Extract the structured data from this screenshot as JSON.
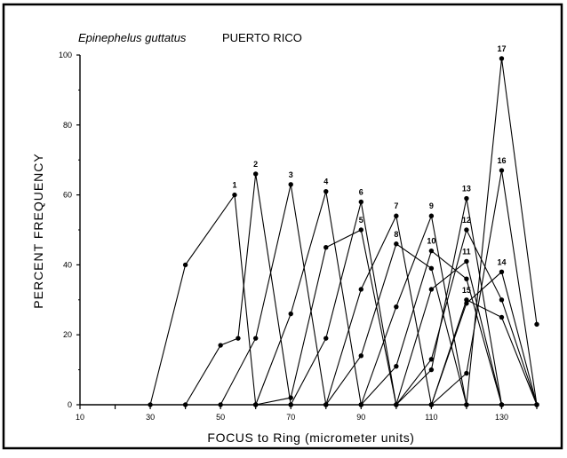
{
  "chart_data": {
    "type": "line",
    "title": "Epinephelus guttatus",
    "subtitle": "PUERTO RICO",
    "xlabel": "FOCUS to Ring (micrometer units)",
    "ylabel": "PERCENT FREQUENCY",
    "xlim": [
      10,
      140
    ],
    "ylim": [
      0,
      100
    ],
    "x_ticks": [
      "10",
      "30",
      "50",
      "70",
      "90",
      "110",
      "130"
    ],
    "y_ticks": [
      "0",
      "20",
      "40",
      "60",
      "80",
      "100"
    ],
    "grid": false,
    "series": [
      {
        "name": "1",
        "x": [
          30,
          40,
          54,
          60
        ],
        "y": [
          0,
          40,
          60,
          0
        ]
      },
      {
        "name": "2",
        "x": [
          40,
          50,
          55,
          60,
          70
        ],
        "y": [
          0,
          17,
          19,
          66,
          0
        ]
      },
      {
        "name": "3",
        "x": [
          50,
          60,
          70,
          80
        ],
        "y": [
          0,
          19,
          63,
          0
        ]
      },
      {
        "name": "4",
        "x": [
          60,
          70,
          80,
          90
        ],
        "y": [
          0,
          26,
          61,
          0
        ]
      },
      {
        "name": "5",
        "x": [
          60,
          70,
          80,
          90,
          100
        ],
        "y": [
          0,
          2,
          45,
          50,
          0
        ]
      },
      {
        "name": "6",
        "x": [
          70,
          80,
          90,
          100
        ],
        "y": [
          0,
          19,
          58,
          0
        ]
      },
      {
        "name": "7",
        "x": [
          80,
          90,
          100,
          110
        ],
        "y": [
          0,
          33,
          54,
          0
        ]
      },
      {
        "name": "8",
        "x": [
          80,
          90,
          100,
          110,
          120
        ],
        "y": [
          0,
          14,
          46,
          39,
          0
        ]
      },
      {
        "name": "9",
        "x": [
          90,
          100,
          110,
          120
        ],
        "y": [
          0,
          28,
          54,
          0
        ]
      },
      {
        "name": "10",
        "x": [
          90,
          100,
          110,
          120,
          130
        ],
        "y": [
          0,
          11,
          44,
          36,
          0
        ]
      },
      {
        "name": "11",
        "x": [
          100,
          110,
          120,
          130
        ],
        "y": [
          0,
          33,
          41,
          0
        ]
      },
      {
        "name": "12",
        "x": [
          100,
          110,
          120,
          130,
          140
        ],
        "y": [
          0,
          13,
          50,
          30,
          0
        ]
      },
      {
        "name": "13",
        "x": [
          100,
          110,
          120,
          130
        ],
        "y": [
          0,
          10,
          59,
          0
        ]
      },
      {
        "name": "14",
        "x": [
          110,
          120,
          130,
          140
        ],
        "y": [
          0,
          29,
          38,
          0
        ]
      },
      {
        "name": "15",
        "x": [
          110,
          120,
          130,
          140
        ],
        "y": [
          0,
          30,
          25,
          0
        ]
      },
      {
        "name": "16",
        "x": [
          110,
          120,
          130,
          140
        ],
        "y": [
          0,
          9,
          67,
          0
        ]
      },
      {
        "name": "17",
        "x": [
          120,
          130,
          140
        ],
        "y": [
          0,
          99,
          23
        ]
      }
    ]
  }
}
